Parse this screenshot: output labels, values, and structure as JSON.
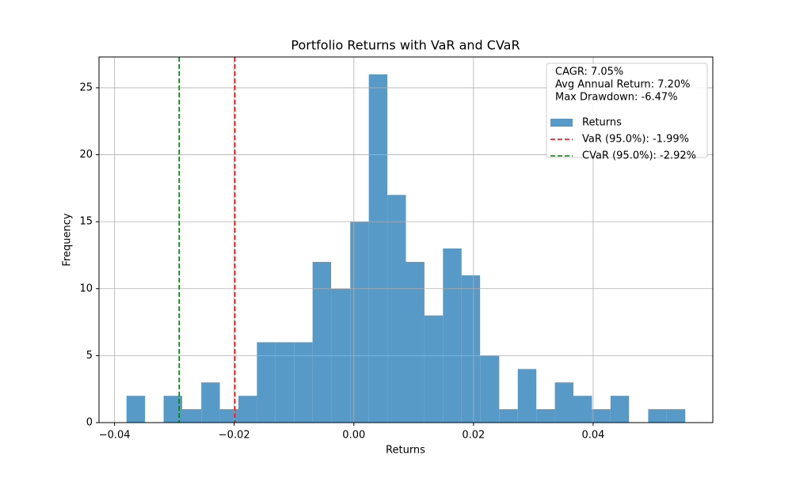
{
  "chart_data": {
    "type": "histogram",
    "title": "Portfolio Returns with VaR and CVaR",
    "xlabel": "Returns",
    "ylabel": "Frequency",
    "bins": [
      -0.038,
      -0.0349,
      -0.0318,
      -0.0287,
      -0.0255,
      -0.0224,
      -0.0193,
      -0.0162,
      -0.0131,
      -0.01,
      -0.0069,
      -0.0038,
      -0.0006,
      0.0025,
      0.0056,
      0.0087,
      0.0118,
      0.0149,
      0.018,
      0.0211,
      0.0243,
      0.0274,
      0.0305,
      0.0336,
      0.0367,
      0.0398,
      0.0429,
      0.046,
      0.0492,
      0.0523,
      0.0554
    ],
    "series": [
      {
        "name": "Returns",
        "color": "#5799c7",
        "values": [
          2,
          0,
          2,
          1,
          3,
          1,
          2,
          6,
          6,
          6,
          12,
          10,
          15,
          26,
          17,
          12,
          8,
          13,
          11,
          5,
          1,
          4,
          1,
          3,
          2,
          1,
          2,
          0,
          1,
          1
        ]
      }
    ],
    "vlines": [
      {
        "name": "VaR (95.0%): -1.99%",
        "value": -0.0199,
        "color": "#ff0000"
      },
      {
        "name": "CVaR (95.0%): -2.92%",
        "value": -0.0292,
        "color": "#008000"
      }
    ],
    "stats_text": [
      "CAGR: 7.05%",
      "Avg Annual Return: 7.20%",
      "Max Drawdown: -6.47%"
    ],
    "xlim": [
      -0.0426,
      0.06
    ],
    "ylim": [
      0,
      27.3
    ],
    "xticks": [
      {
        "value": -0.04,
        "label": "−0.04"
      },
      {
        "value": -0.02,
        "label": "−0.02"
      },
      {
        "value": 0,
        "label": "0.00"
      },
      0.02,
      0.04
    ],
    "yticks": [
      0,
      5,
      10,
      15,
      20,
      25
    ],
    "grid": true,
    "legend": "upper right"
  }
}
